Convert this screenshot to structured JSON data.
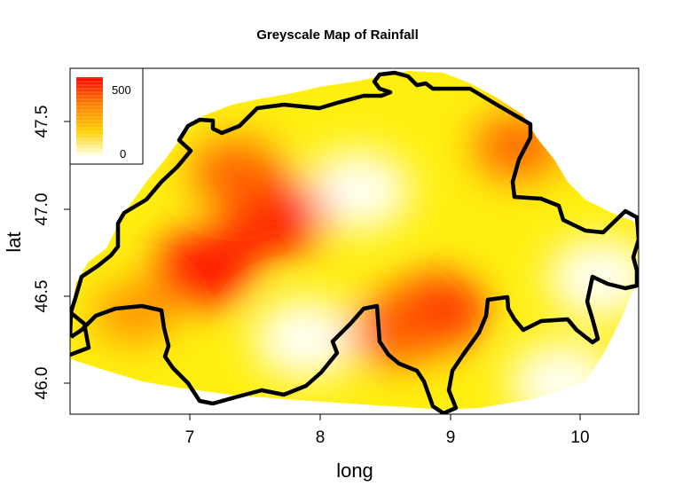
{
  "chart_data": {
    "type": "heatmap",
    "title": "Greyscale Map of Rainfall",
    "xlabel": "long",
    "ylabel": "lat",
    "xlim": [
      6.05,
      10.5
    ],
    "ylim": [
      45.82,
      47.8
    ],
    "x_ticks": [
      "7",
      "8",
      "9",
      "10"
    ],
    "y_ticks": [
      "46.0",
      "46.5",
      "47.0",
      "47.5"
    ],
    "legend": {
      "position": "top-left",
      "labels": [
        "500",
        "0"
      ]
    },
    "colors": {
      "high": "#ff0000",
      "mid_high": "#ff8c00",
      "mid": "#ffd700",
      "low": "#ffff00",
      "zero": "#ffffff",
      "border": "#000000"
    },
    "hotspots": [
      {
        "long": 7.1,
        "lat": 46.65,
        "value": 520
      },
      {
        "long": 7.65,
        "lat": 46.95,
        "value": 560
      },
      {
        "long": 7.35,
        "lat": 47.2,
        "value": 420
      },
      {
        "long": 8.9,
        "lat": 46.4,
        "value": 500
      },
      {
        "long": 8.6,
        "lat": 46.3,
        "value": 460
      },
      {
        "long": 9.55,
        "lat": 47.35,
        "value": 380
      },
      {
        "long": 6.55,
        "lat": 46.4,
        "value": 320
      }
    ],
    "lowspots": [
      {
        "long": 8.3,
        "lat": 47.1,
        "value": 20
      },
      {
        "long": 7.9,
        "lat": 46.25,
        "value": 20
      },
      {
        "long": 10.2,
        "lat": 46.6,
        "value": 0
      },
      {
        "long": 9.9,
        "lat": 46.0,
        "value": 0
      }
    ]
  }
}
